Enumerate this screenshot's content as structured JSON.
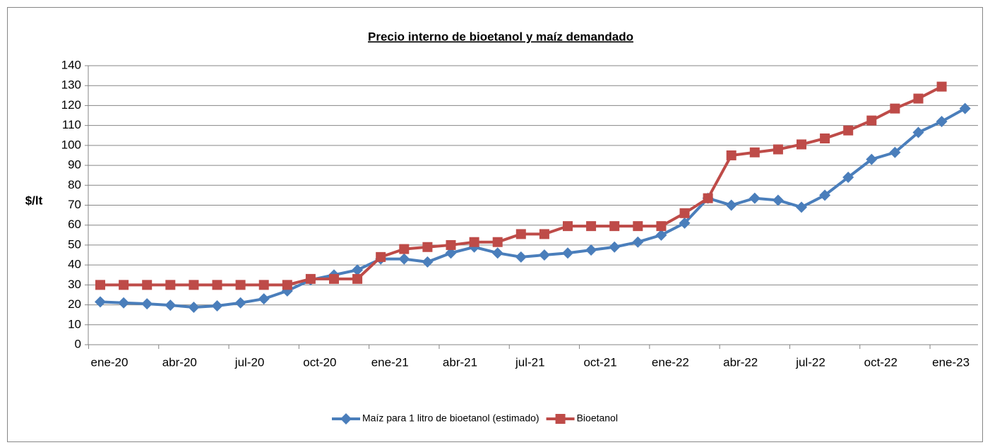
{
  "chart_data": {
    "type": "line",
    "title": "Precio interno de bioetanol y maíz demandado",
    "y_label": "$/lt",
    "categories": [
      "ene-20",
      null,
      null,
      "abr-20",
      null,
      null,
      "jul-20",
      null,
      null,
      "oct-20",
      null,
      null,
      "ene-21",
      null,
      null,
      "abr-21",
      null,
      null,
      "jul-21",
      null,
      null,
      "oct-21",
      null,
      null,
      "ene-22",
      null,
      null,
      "abr-22",
      null,
      null,
      "jul-22",
      null,
      null,
      "oct-22",
      null,
      null,
      "ene-23",
      null
    ],
    "series": [
      {
        "name": "Maíz para 1 litro de bioetanol (estimado)",
        "color": "#4a7ebb",
        "marker": "diamond",
        "values": [
          21.5,
          21,
          20.5,
          19.8,
          18.8,
          19.5,
          21,
          23,
          27,
          32.5,
          35,
          37.5,
          43,
          43,
          41.5,
          46,
          49,
          46,
          44,
          45,
          46,
          47.5,
          49,
          51.5,
          55,
          61,
          73.5,
          70,
          73.5,
          72.5,
          69,
          75,
          84,
          93,
          96.5,
          106.5,
          112,
          118.5
        ]
      },
      {
        "name": "Bioetanol",
        "color": "#be4b48",
        "marker": "square",
        "values": [
          30,
          30,
          30,
          30,
          30,
          30,
          30,
          30,
          30,
          33,
          33,
          33,
          44,
          48,
          49,
          50,
          51.5,
          51.5,
          55.5,
          55.5,
          59.5,
          59.5,
          59.5,
          59.5,
          59.5,
          66,
          73.5,
          95,
          96.5,
          98,
          100.5,
          103.5,
          107.5,
          112.5,
          118.5,
          123.5,
          129.5,
          null
        ]
      }
    ],
    "ylim": [
      0,
      140
    ],
    "yticks": [
      0,
      10,
      20,
      30,
      40,
      50,
      60,
      70,
      80,
      90,
      100,
      110,
      120,
      130,
      140
    ],
    "grid": true,
    "legend": "bottom"
  }
}
